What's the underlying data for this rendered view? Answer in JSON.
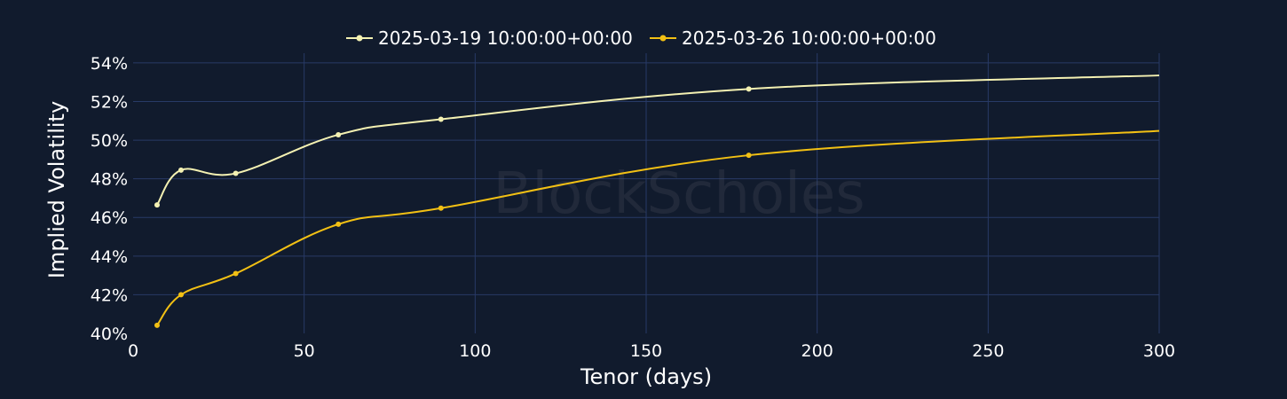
{
  "watermark": "BlockScholes",
  "chart_data": {
    "type": "line",
    "title": "",
    "xlabel": "Tenor (days)",
    "ylabel": "Implied Volatility",
    "xlim": [
      0,
      300
    ],
    "ylim": [
      40,
      54.5
    ],
    "x_ticks": [
      0,
      50,
      100,
      150,
      200,
      250,
      300
    ],
    "y_ticks": [
      40,
      42,
      44,
      46,
      48,
      50,
      52,
      54
    ],
    "y_tick_suffix": "%",
    "grid": true,
    "legend_position": "top-center",
    "series": [
      {
        "name": "2025-03-19 10:00:00+00:00",
        "color": "#f4f1b2",
        "x": [
          7,
          14,
          30,
          60,
          90,
          180,
          300
        ],
        "y": [
          46.65,
          48.45,
          48.28,
          50.28,
          51.08,
          52.65,
          53.35
        ],
        "markers_x": [
          7,
          14,
          30,
          60,
          90,
          180
        ]
      },
      {
        "name": "2025-03-26 10:00:00+00:00",
        "color": "#f2c014",
        "x": [
          7,
          14,
          30,
          60,
          90,
          180,
          300
        ],
        "y": [
          40.42,
          42.0,
          43.1,
          45.65,
          46.48,
          49.22,
          50.48
        ],
        "markers_x": [
          7,
          14,
          30,
          60,
          90,
          180
        ]
      }
    ]
  }
}
